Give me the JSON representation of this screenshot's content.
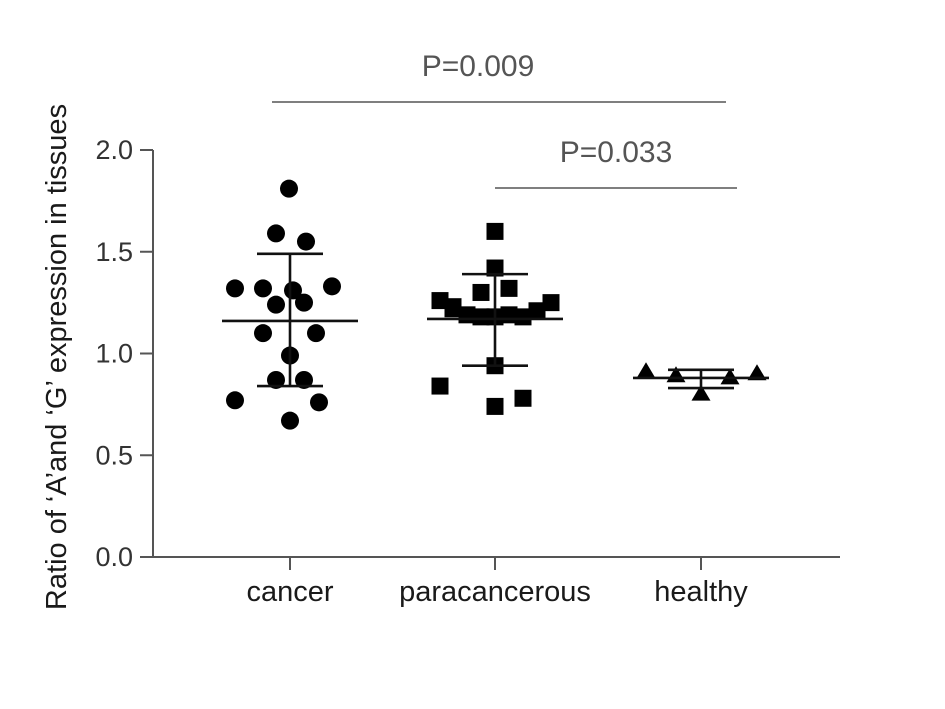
{
  "chart_data": {
    "type": "scatter",
    "ylabel": "Ratio of ‘A’and ‘G’ expression in  tissues",
    "xlabel": "",
    "ylim": [
      0,
      2.0
    ],
    "yticks": [
      0.0,
      0.5,
      1.0,
      1.5,
      2.0
    ],
    "ytick_labels": [
      "0.0",
      "0.5",
      "1.0",
      "1.5",
      "2.0"
    ],
    "categories": [
      "cancer",
      "paracancerous",
      "healthy"
    ],
    "series": [
      {
        "category": "cancer",
        "marker": "circle",
        "mean": 1.16,
        "sd_low": 0.84,
        "sd_high": 1.49,
        "points": [
          1.81,
          1.59,
          1.55,
          1.32,
          1.32,
          1.31,
          1.33,
          1.24,
          1.25,
          1.1,
          1.1,
          0.99,
          0.87,
          0.87,
          0.77,
          0.76,
          0.67
        ]
      },
      {
        "category": "paracancerous",
        "marker": "square",
        "mean": 1.17,
        "sd_low": 0.94,
        "sd_high": 1.39,
        "points": [
          1.6,
          1.42,
          1.32,
          1.3,
          1.26,
          1.25,
          1.23,
          1.21,
          1.19,
          1.18,
          1.18,
          1.18,
          1.19,
          1.22,
          0.94,
          0.84,
          0.78,
          0.74
        ]
      },
      {
        "category": "healthy",
        "marker": "triangle",
        "mean": 0.88,
        "sd_low": 0.83,
        "sd_high": 0.92,
        "points": [
          0.91,
          0.89,
          0.8,
          0.88,
          0.9
        ]
      }
    ],
    "annotations": [
      {
        "text": "P=0.009",
        "from": "cancer",
        "to": "healthy"
      },
      {
        "text": "P=0.033",
        "from": "paracancerous",
        "to": "healthy"
      }
    ]
  }
}
